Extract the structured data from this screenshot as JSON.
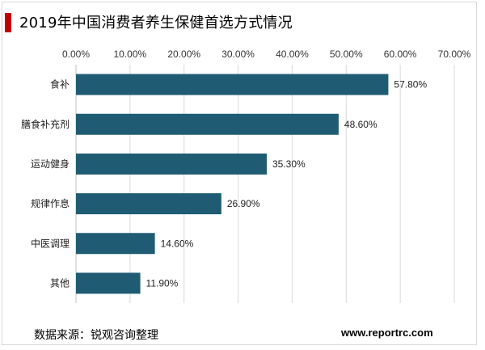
{
  "header": {
    "title": "2019年中国消费者养生保健首选方式情况",
    "accent_color": "#c00000"
  },
  "footer": {
    "source": "数据来源：锐观咨询整理",
    "website": "www.reportrc.com"
  },
  "chart_data": {
    "type": "bar",
    "orientation": "horizontal",
    "title": "2019年中国消费者养生保健首选方式情况",
    "categories": [
      "食补",
      "膳食补充剂",
      "运动健身",
      "规律作息",
      "中医调理",
      "其他"
    ],
    "values": [
      57.8,
      48.6,
      35.3,
      26.9,
      14.6,
      11.9
    ],
    "value_labels": [
      "57.80%",
      "48.60%",
      "35.30%",
      "26.90%",
      "14.60%",
      "11.90%"
    ],
    "x_ticks": [
      "0.00%",
      "10.00%",
      "20.00%",
      "30.00%",
      "40.00%",
      "50.00%",
      "60.00%",
      "70.00%"
    ],
    "xlim": [
      0,
      70
    ],
    "axis_position": "top",
    "grid": true,
    "bar_color": "#1f5c74",
    "xlabel": "",
    "ylabel": ""
  }
}
